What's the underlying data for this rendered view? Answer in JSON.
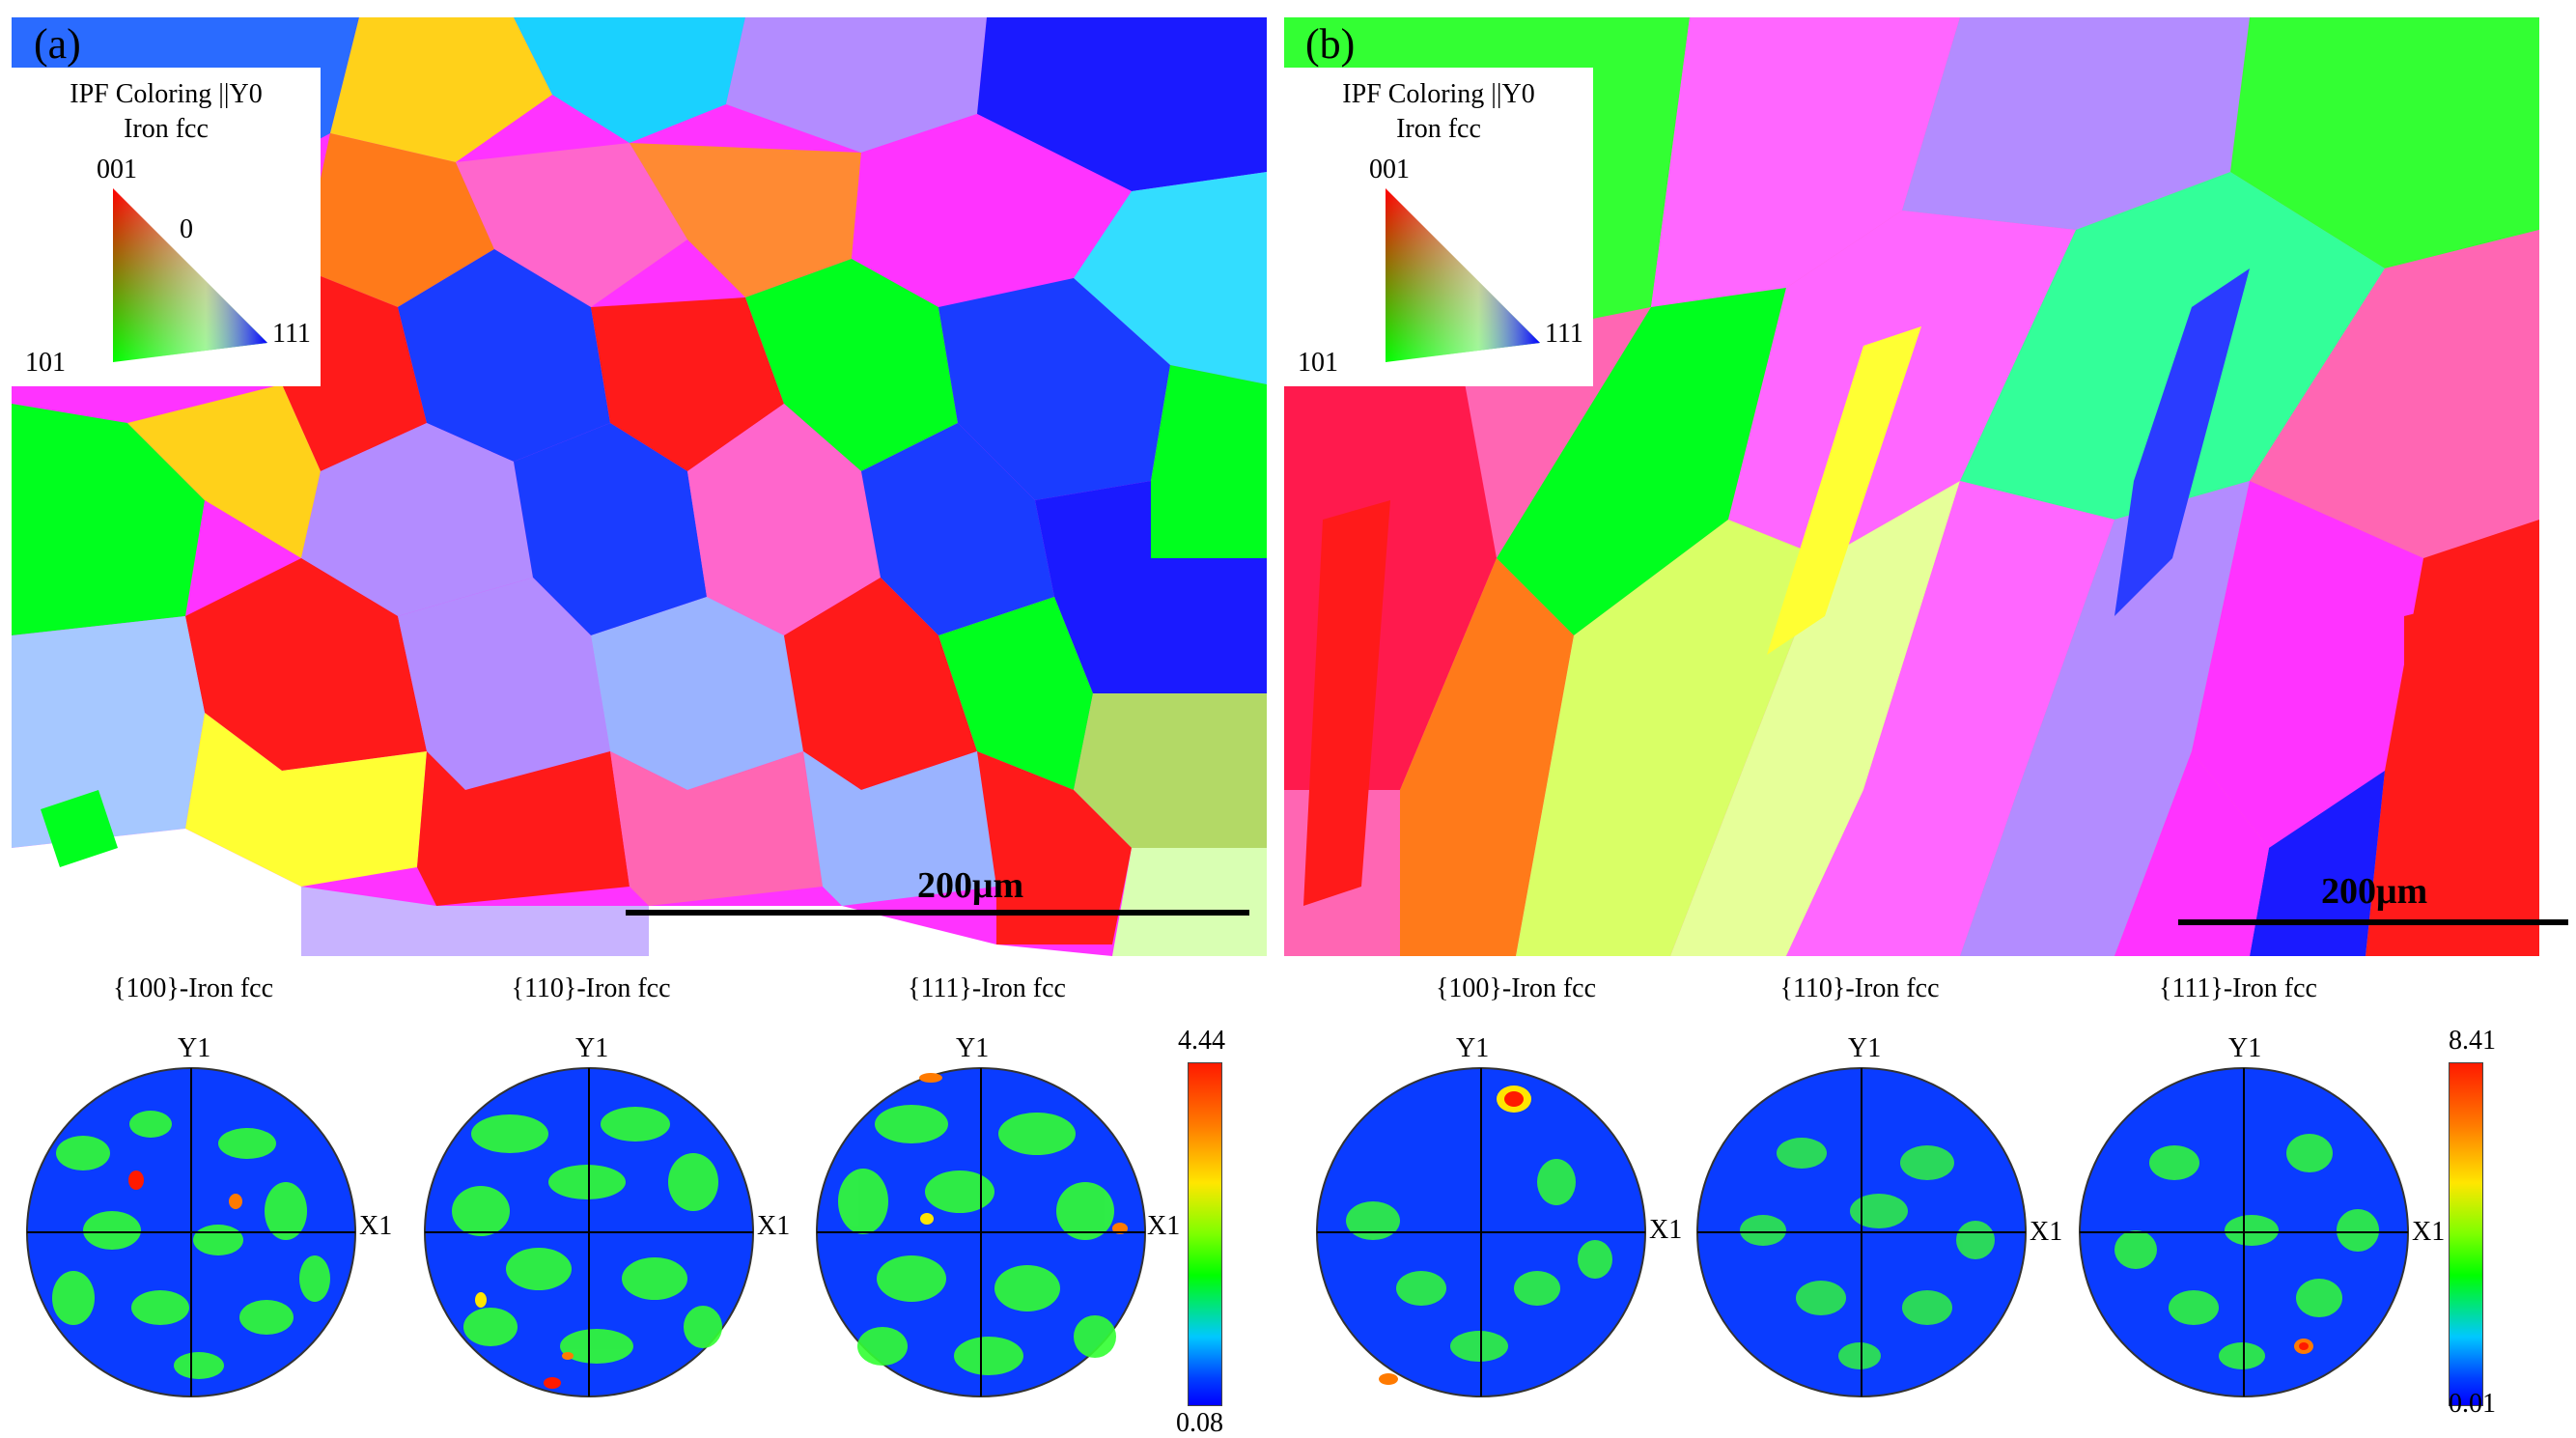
{
  "panels": {
    "a": {
      "letter": "(a)",
      "legend": {
        "title1": "IPF Coloring ||Y0",
        "title2": "Iron fcc",
        "corner_001": "001",
        "corner_101": "101",
        "corner_111": "111",
        "zero_label": "0"
      },
      "scalebar": "200μm",
      "pole_figures": [
        {
          "title": "{100}-Iron fcc",
          "y_axis": "Y1",
          "x_axis": "X1"
        },
        {
          "title": "{110}-Iron fcc",
          "y_axis": "Y1",
          "x_axis": "X1"
        },
        {
          "title": "{111}-Iron fcc",
          "y_axis": "Y1",
          "x_axis": "X1"
        }
      ],
      "colorbar": {
        "max": "4.44",
        "min": "0.08"
      }
    },
    "b": {
      "letter": "(b)",
      "legend": {
        "title1": "IPF Coloring ||Y0",
        "title2": "Iron fcc",
        "corner_001": "001",
        "corner_101": "101",
        "corner_111": "111"
      },
      "scalebar": "200μm",
      "pole_figures": [
        {
          "title": "{100}-Iron fcc",
          "y_axis": "Y1",
          "x_axis": "X1"
        },
        {
          "title": "{110}-Iron fcc",
          "y_axis": "Y1",
          "x_axis": "X1"
        },
        {
          "title": "{111}-Iron fcc",
          "y_axis": "Y1",
          "x_axis": "X1"
        }
      ],
      "colorbar": {
        "max": "8.41",
        "min": "0.01"
      }
    }
  },
  "colors": {
    "red": "#ff1a1a",
    "green": "#00ff1e",
    "blue": "#1a3cff",
    "magenta": "#ff33ff",
    "pink": "#ff66b3",
    "orange": "#ff7a1a",
    "yellow": "#ffff33",
    "cyan": "#33ddff",
    "lilac": "#b38cff",
    "pfBlue": "#0a3cff",
    "pfGreen": "#33ff33"
  }
}
